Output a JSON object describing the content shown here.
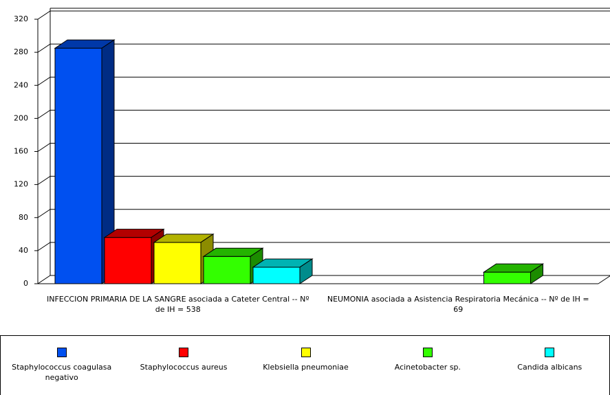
{
  "chart_data": {
    "type": "bar3d",
    "categories": [
      "INFECCION PRIMARIA DE LA SANGRE asociada a Cateter Central  --  Nº de IH = 538",
      "NEUMONIA asociada a Asistencia Respiratoria Mecánica  --  Nº de IH = 69"
    ],
    "series": [
      {
        "name": "Staphylococcus coagulasa negativo",
        "color": "#0050f0",
        "values": [
          285,
          null
        ]
      },
      {
        "name": "Staphylococcus aureus",
        "color": "#ff0000",
        "values": [
          56,
          null
        ]
      },
      {
        "name": "Klebsiella pneumoniae",
        "color": "#ffff00",
        "values": [
          50,
          null
        ]
      },
      {
        "name": "Acinetobacter sp.",
        "color": "#33ff00",
        "values": [
          33,
          14
        ]
      },
      {
        "name": "Candida albicans",
        "color": "#00ffff",
        "values": [
          20,
          null
        ]
      }
    ],
    "ylim": [
      0,
      320
    ],
    "yticks": [
      0,
      40,
      80,
      120,
      160,
      200,
      240,
      280,
      320
    ],
    "grid": true,
    "legend": "bottom"
  }
}
